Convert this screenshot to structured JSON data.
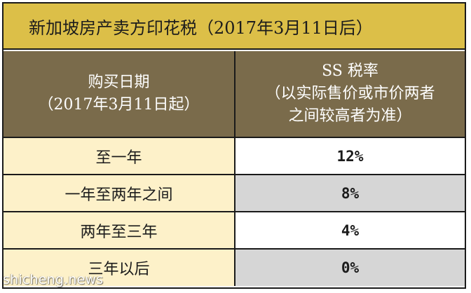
{
  "colors": {
    "title_bg": "#dcbf48",
    "header_bg": "#7a6b4b",
    "period_bg": "#fdf1c9",
    "rate_bg_white": "#ffffff",
    "rate_bg_gray": "#d6d6d6",
    "border": "#1a1a1a"
  },
  "title": "新加坡房产卖方印花税（2017年3月11日后）",
  "header": {
    "period": {
      "line1": "购买日期",
      "line2": "（2017年3月11日起）"
    },
    "rate": {
      "line1": "SS 税率",
      "line2": "（以实际售价或市价两者",
      "line3": "之间较高者为准）"
    }
  },
  "rows": [
    {
      "period": "至一年",
      "rate": "12%",
      "rate_shade": "white"
    },
    {
      "period": "一年至两年之间",
      "rate": "8%",
      "rate_shade": "gray"
    },
    {
      "period": "两年至三年",
      "rate": "4%",
      "rate_shade": "white"
    },
    {
      "period": "三年以后",
      "rate": "0%",
      "rate_shade": "gray"
    }
  ],
  "watermark": "shicheng.news"
}
